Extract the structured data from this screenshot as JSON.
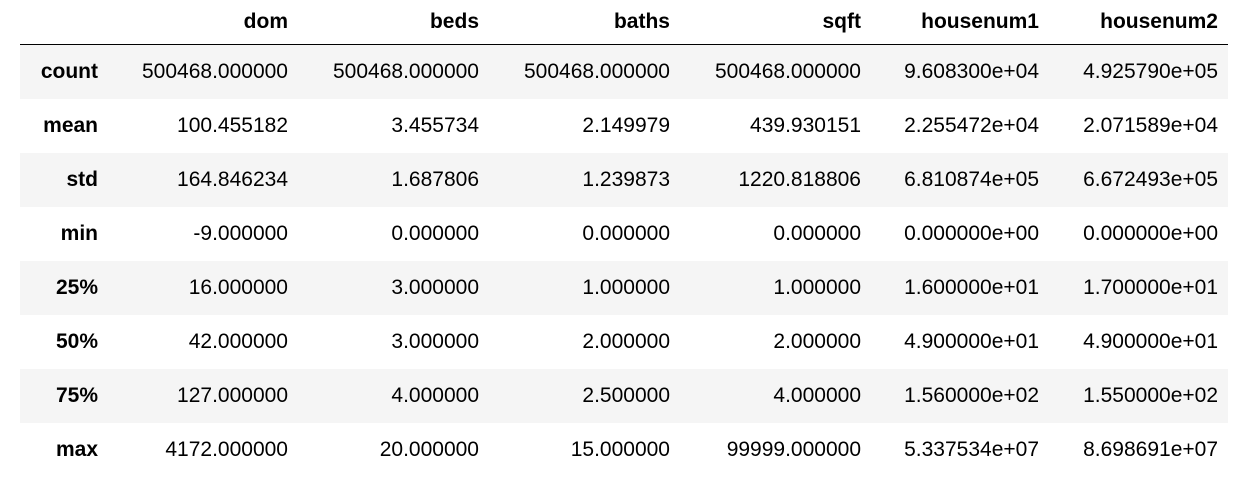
{
  "table": {
    "index_header": "",
    "columns": [
      "dom",
      "beds",
      "baths",
      "sqft",
      "housenum1",
      "housenum2"
    ],
    "rows": [
      {
        "label": "count",
        "values": [
          "500468.000000",
          "500468.000000",
          "500468.000000",
          "500468.000000",
          "9.608300e+04",
          "4.925790e+05"
        ]
      },
      {
        "label": "mean",
        "values": [
          "100.455182",
          "3.455734",
          "2.149979",
          "439.930151",
          "2.255472e+04",
          "2.071589e+04"
        ]
      },
      {
        "label": "std",
        "values": [
          "164.846234",
          "1.687806",
          "1.239873",
          "1220.818806",
          "6.810874e+05",
          "6.672493e+05"
        ]
      },
      {
        "label": "min",
        "values": [
          "-9.000000",
          "0.000000",
          "0.000000",
          "0.000000",
          "0.000000e+00",
          "0.000000e+00"
        ]
      },
      {
        "label": "25%",
        "values": [
          "16.000000",
          "3.000000",
          "1.000000",
          "1.000000",
          "1.600000e+01",
          "1.700000e+01"
        ]
      },
      {
        "label": "50%",
        "values": [
          "42.000000",
          "3.000000",
          "2.000000",
          "2.000000",
          "4.900000e+01",
          "4.900000e+01"
        ]
      },
      {
        "label": "75%",
        "values": [
          "127.000000",
          "4.000000",
          "2.500000",
          "4.000000",
          "1.560000e+02",
          "1.550000e+02"
        ]
      },
      {
        "label": "max",
        "values": [
          "4172.000000",
          "20.000000",
          "15.000000",
          "99999.000000",
          "5.337534e+07",
          "8.698691e+07"
        ]
      }
    ]
  }
}
